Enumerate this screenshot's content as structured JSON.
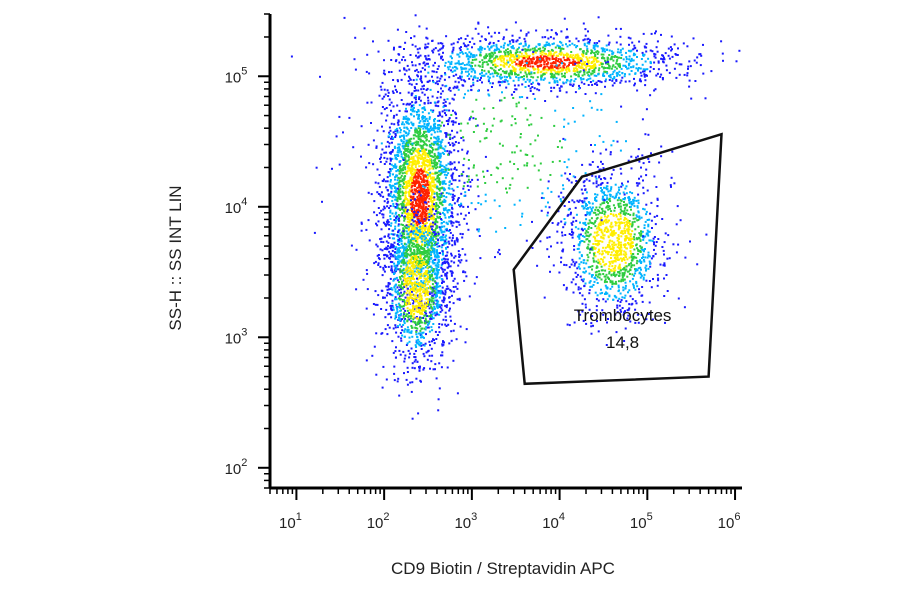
{
  "chart_data": {
    "type": "scatter",
    "subtype": "flow-cytometry density dot plot",
    "xlabel": "CD9 Biotin / Streptavidin APC",
    "ylabel": "SS-H :: SS INT LIN",
    "x_scale": "log",
    "y_scale": "log",
    "xlim": [
      5,
      1200000
    ],
    "ylim": [
      70,
      300000
    ],
    "x_ticks": [
      {
        "base": "10",
        "exp": "1",
        "value": 10
      },
      {
        "base": "10",
        "exp": "2",
        "value": 100
      },
      {
        "base": "10",
        "exp": "3",
        "value": 1000
      },
      {
        "base": "10",
        "exp": "4",
        "value": 10000
      },
      {
        "base": "10",
        "exp": "5",
        "value": 100000
      },
      {
        "base": "10",
        "exp": "6",
        "value": 1000000
      }
    ],
    "y_ticks": [
      {
        "base": "10",
        "exp": "2",
        "value": 100
      },
      {
        "base": "10",
        "exp": "3",
        "value": 1000
      },
      {
        "base": "10",
        "exp": "4",
        "value": 10000
      },
      {
        "base": "10",
        "exp": "5",
        "value": 100000
      }
    ],
    "populations": [
      {
        "center_x": 250,
        "center_y": 12000,
        "spread_x_dec": 0.22,
        "spread_y_dec": 0.45,
        "weight": 0.4
      },
      {
        "center_x": 230,
        "center_y": 2500,
        "spread_x_dec": 0.18,
        "spread_y_dec": 0.3,
        "weight": 0.15
      },
      {
        "center_x": 7000,
        "center_y": 130000,
        "spread_x_dec": 0.75,
        "spread_y_dec": 0.1,
        "weight": 0.22
      },
      {
        "center_x": 40000,
        "center_y": 5500,
        "spread_x_dec": 0.28,
        "spread_y_dec": 0.28,
        "weight": 0.18
      },
      {
        "center_x": 2000,
        "center_y": 30000,
        "spread_x_dec": 0.9,
        "spread_y_dec": 0.45,
        "weight": 0.05
      }
    ],
    "gates": [
      {
        "name": "Trombocytes",
        "value": "14,8",
        "polygon": [
          [
            18000,
            17000
          ],
          [
            700000,
            36000
          ],
          [
            500000,
            500
          ],
          [
            4000,
            440
          ],
          [
            3000,
            3300
          ]
        ]
      }
    ],
    "colors": {
      "density_low": "#1a1aff",
      "density_mid_low": "#00b4ff",
      "density_mid": "#2ecc40",
      "density_mid_high": "#ffee00",
      "density_high": "#ff2200",
      "gate": "#111111",
      "axis": "#000000"
    },
    "grid": false
  }
}
